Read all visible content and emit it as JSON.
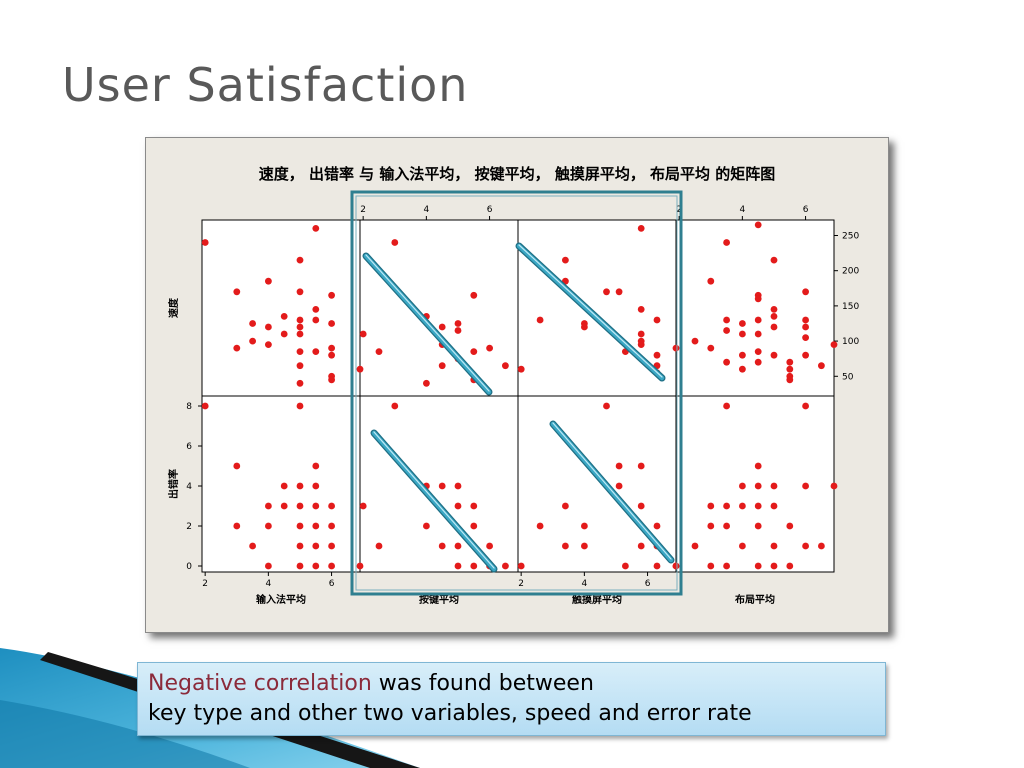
{
  "slide": {
    "title": "User Satisfaction",
    "callout": {
      "highlight": "Negative correlation",
      "line1_rest": " was found between",
      "line2": "key type and other two variables, speed and error rate"
    }
  },
  "colors": {
    "points": "#e31b1b",
    "trend_lines": "#3aa7c4",
    "highlight_box": "#2f7f90",
    "figure_bg": "#ece9e2",
    "callout_text_highlight": "#8b2a3a"
  },
  "chart_data": {
    "type": "scatter",
    "title": "速度， 出错率 与 输入法平均， 按键平均， 触摸屏平均， 布局平均 的矩阵图",
    "x_variables": [
      {
        "label": "输入法平均",
        "ticks": [
          2,
          4,
          6
        ],
        "lim": [
          1.9,
          6.9
        ]
      },
      {
        "label": "按键平均",
        "ticks": [
          2,
          4,
          6
        ],
        "lim": [
          1.9,
          6.9
        ]
      },
      {
        "label": "触摸屏平均",
        "ticks": [
          2,
          4,
          6
        ],
        "lim": [
          1.9,
          6.9
        ]
      },
      {
        "label": "布局平均",
        "ticks": [
          2,
          4,
          6
        ],
        "lim": [
          1.9,
          6.9
        ]
      }
    ],
    "y_variables": [
      {
        "label": "速度",
        "ticks": [
          50,
          100,
          150,
          200,
          250
        ],
        "lim": [
          22,
          272
        ]
      },
      {
        "label": "出错率",
        "ticks": [
          0,
          2,
          4,
          6,
          8
        ],
        "lim": [
          -0.3,
          8.5
        ]
      }
    ],
    "panels": [
      {
        "x": "输入法平均",
        "y": "速度",
        "points": [
          [
            2,
            240
          ],
          [
            3,
            170
          ],
          [
            3,
            90
          ],
          [
            3.5,
            125
          ],
          [
            3.5,
            100
          ],
          [
            4,
            185
          ],
          [
            4,
            120
          ],
          [
            4,
            95
          ],
          [
            4.5,
            135
          ],
          [
            4.5,
            110
          ],
          [
            5,
            215
          ],
          [
            5,
            170
          ],
          [
            5,
            130
          ],
          [
            5,
            120
          ],
          [
            5,
            110
          ],
          [
            5,
            85
          ],
          [
            5,
            65
          ],
          [
            5,
            40
          ],
          [
            5.5,
            260
          ],
          [
            5.5,
            145
          ],
          [
            5.5,
            130
          ],
          [
            5.5,
            85
          ],
          [
            6,
            165
          ],
          [
            6,
            125
          ],
          [
            6,
            90
          ],
          [
            6,
            80
          ],
          [
            6,
            50
          ],
          [
            6,
            45
          ],
          [
            6.9,
            60
          ]
        ]
      },
      {
        "x": "按键平均",
        "y": "速度",
        "points": [
          [
            2,
            110
          ],
          [
            2.5,
            85
          ],
          [
            3,
            240
          ],
          [
            4,
            135
          ],
          [
            4,
            40
          ],
          [
            4.5,
            120
          ],
          [
            4.5,
            95
          ],
          [
            4.5,
            65
          ],
          [
            5,
            125
          ],
          [
            5,
            115
          ],
          [
            5,
            75
          ],
          [
            5.5,
            165
          ],
          [
            5.5,
            85
          ],
          [
            5.5,
            45
          ],
          [
            6,
            90
          ],
          [
            6.5,
            65
          ],
          [
            7,
            60
          ]
        ]
      },
      {
        "x": "触摸屏平均",
        "y": "速度",
        "points": [
          [
            2.6,
            130
          ],
          [
            3.4,
            215
          ],
          [
            3.4,
            185
          ],
          [
            4,
            125
          ],
          [
            4,
            120
          ],
          [
            4.7,
            170
          ],
          [
            5.1,
            170
          ],
          [
            5.3,
            85
          ],
          [
            5.8,
            260
          ],
          [
            5.8,
            145
          ],
          [
            5.8,
            110
          ],
          [
            5.8,
            100
          ],
          [
            5.8,
            95
          ],
          [
            6.3,
            130
          ],
          [
            6.3,
            80
          ],
          [
            6.3,
            65
          ],
          [
            6.3,
            55
          ]
        ]
      },
      {
        "x": "布局平均",
        "y": "速度",
        "points": [
          [
            1.9,
            90
          ],
          [
            2.5,
            100
          ],
          [
            3,
            185
          ],
          [
            3,
            90
          ],
          [
            3.5,
            240
          ],
          [
            3.5,
            130
          ],
          [
            3.5,
            115
          ],
          [
            3.5,
            70
          ],
          [
            4,
            125
          ],
          [
            4,
            110
          ],
          [
            4,
            80
          ],
          [
            4,
            60
          ],
          [
            4.5,
            265
          ],
          [
            4.5,
            165
          ],
          [
            4.5,
            160
          ],
          [
            4.5,
            130
          ],
          [
            4.5,
            110
          ],
          [
            4.5,
            85
          ],
          [
            4.5,
            70
          ],
          [
            5,
            215
          ],
          [
            5,
            145
          ],
          [
            5,
            135
          ],
          [
            5,
            120
          ],
          [
            5,
            80
          ],
          [
            5.5,
            70
          ],
          [
            5.5,
            60
          ],
          [
            5.5,
            50
          ],
          [
            5.5,
            45
          ],
          [
            6,
            170
          ],
          [
            6,
            130
          ],
          [
            6,
            120
          ],
          [
            6,
            105
          ],
          [
            6,
            80
          ],
          [
            6.5,
            65
          ],
          [
            6.9,
            95
          ]
        ]
      },
      {
        "x": "输入法平均",
        "y": "出错率",
        "points": [
          [
            2,
            8
          ],
          [
            3,
            5
          ],
          [
            3,
            2
          ],
          [
            3.5,
            1
          ],
          [
            4,
            3
          ],
          [
            4,
            2
          ],
          [
            4,
            0
          ],
          [
            4.5,
            4
          ],
          [
            4.5,
            3
          ],
          [
            5,
            8
          ],
          [
            5,
            4
          ],
          [
            5,
            3
          ],
          [
            5,
            2
          ],
          [
            5,
            1
          ],
          [
            5,
            0
          ],
          [
            5.5,
            5
          ],
          [
            5.5,
            4
          ],
          [
            5.5,
            3
          ],
          [
            5.5,
            2
          ],
          [
            5.5,
            1
          ],
          [
            5.5,
            0
          ],
          [
            6,
            3
          ],
          [
            6,
            2
          ],
          [
            6,
            1
          ],
          [
            6,
            0
          ],
          [
            6.9,
            0
          ]
        ]
      },
      {
        "x": "按键平均",
        "y": "出错率",
        "points": [
          [
            2,
            3
          ],
          [
            2.5,
            1
          ],
          [
            3,
            8
          ],
          [
            4,
            4
          ],
          [
            4,
            2
          ],
          [
            4.5,
            4
          ],
          [
            4.5,
            1
          ],
          [
            5,
            4
          ],
          [
            5,
            3
          ],
          [
            5,
            1
          ],
          [
            5,
            0
          ],
          [
            5.5,
            3
          ],
          [
            5.5,
            2
          ],
          [
            5.5,
            0
          ],
          [
            6,
            1
          ],
          [
            6,
            0
          ],
          [
            6.5,
            0
          ],
          [
            7,
            0
          ]
        ]
      },
      {
        "x": "触摸屏平均",
        "y": "出错率",
        "points": [
          [
            2.6,
            2
          ],
          [
            3.4,
            3
          ],
          [
            3.4,
            1
          ],
          [
            4,
            2
          ],
          [
            4,
            1
          ],
          [
            4.7,
            8
          ],
          [
            5.1,
            4
          ],
          [
            5.1,
            5
          ],
          [
            5.3,
            0
          ],
          [
            5.8,
            5
          ],
          [
            5.8,
            3
          ],
          [
            5.8,
            1
          ],
          [
            6.3,
            2
          ],
          [
            6.3,
            1
          ],
          [
            6.3,
            0
          ],
          [
            6.9,
            0
          ]
        ]
      },
      {
        "x": "布局平均",
        "y": "出错率",
        "points": [
          [
            1.9,
            0
          ],
          [
            2.5,
            1
          ],
          [
            3,
            3
          ],
          [
            3,
            2
          ],
          [
            3,
            0
          ],
          [
            3.5,
            8
          ],
          [
            3.5,
            3
          ],
          [
            3.5,
            2
          ],
          [
            3.5,
            0
          ],
          [
            4,
            4
          ],
          [
            4,
            3
          ],
          [
            4,
            1
          ],
          [
            4.5,
            5
          ],
          [
            4.5,
            4
          ],
          [
            4.5,
            3
          ],
          [
            4.5,
            2
          ],
          [
            4.5,
            0
          ],
          [
            5,
            4
          ],
          [
            5,
            3
          ],
          [
            5,
            1
          ],
          [
            5,
            0
          ],
          [
            5.5,
            2
          ],
          [
            5.5,
            0
          ],
          [
            6,
            8
          ],
          [
            6,
            4
          ],
          [
            6,
            1
          ],
          [
            6.5,
            1
          ],
          [
            6.9,
            4
          ]
        ]
      }
    ],
    "grid": false,
    "legend": "none"
  }
}
